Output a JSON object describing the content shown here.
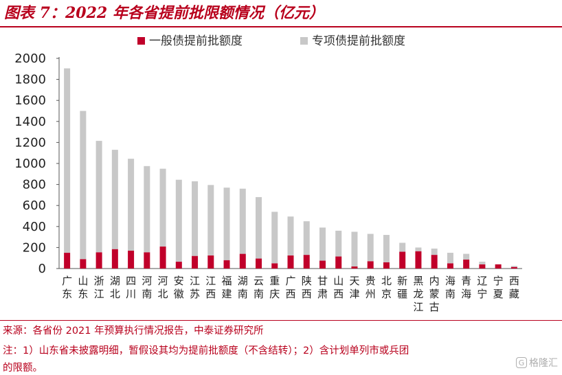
{
  "title": "图表 7：2022 年各省提前批限额情况（亿元）",
  "chart_data": {
    "type": "bar",
    "stacked": true,
    "categories": [
      "广东",
      "山东",
      "浙江",
      "湖北",
      "四川",
      "河南",
      "河北",
      "安徽",
      "江苏",
      "江西",
      "福建",
      "湖南",
      "云南",
      "重庆",
      "广西",
      "陕西",
      "甘肃",
      "山西",
      "天津",
      "贵州",
      "北京",
      "新疆",
      "黑龙江",
      "内蒙古",
      "海南",
      "青海",
      "辽宁",
      "宁夏",
      "西藏"
    ],
    "series": [
      {
        "name": "一般债提前批额度",
        "color": "#c0002a",
        "values": [
          150,
          90,
          155,
          185,
          170,
          155,
          210,
          65,
          120,
          125,
          80,
          140,
          95,
          50,
          125,
          130,
          75,
          115,
          20,
          70,
          60,
          160,
          165,
          130,
          50,
          85,
          40,
          40,
          15
        ]
      },
      {
        "name": "专项债提前批额度",
        "color": "#c8c8c8",
        "values": [
          1755,
          1410,
          1060,
          945,
          875,
          820,
          740,
          780,
          710,
          670,
          690,
          620,
          585,
          490,
          370,
          320,
          315,
          245,
          330,
          260,
          260,
          85,
          35,
          60,
          100,
          55,
          25,
          0,
          10
        ]
      }
    ],
    "ylim": [
      0,
      2000
    ],
    "yticks": [
      0,
      200,
      400,
      600,
      800,
      1000,
      1200,
      1400,
      1600,
      1800,
      2000
    ],
    "legend_position": "top",
    "grid": false
  },
  "footer": {
    "source": "来源：各省份 2021 年预算执行情况报告，中泰证券研究所",
    "note_line1": "注：1）山东省未披露明细，暂假设其均为提前批额度（不含结转）；2）含计划单列市或兵团",
    "note_line2": "的限额。"
  },
  "watermark": {
    "icon": "G",
    "text": "格隆汇"
  }
}
